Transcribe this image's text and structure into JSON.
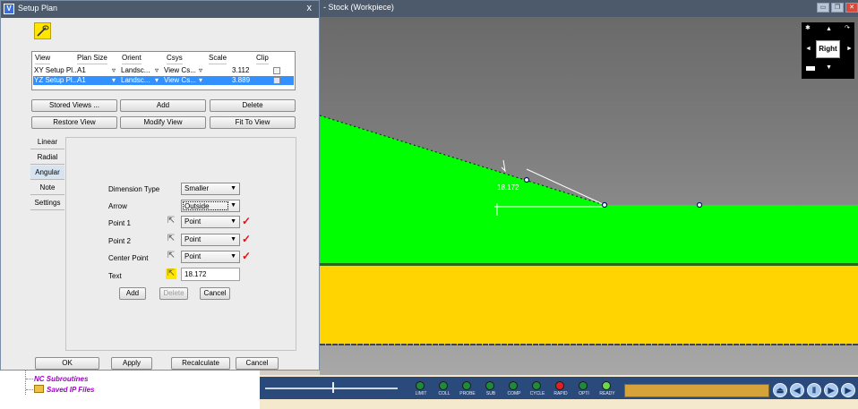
{
  "dialog": {
    "title": "Setup Plan",
    "close_glyph": "x",
    "wand_icon": "magic-wand-icon",
    "table": {
      "headers": [
        "View",
        "Plan Size",
        "Orient",
        "Csys",
        "Scale",
        "Clip"
      ],
      "rows": [
        {
          "view": "XY Setup Pl...",
          "plan_size": "A1",
          "orient": "Landsc...",
          "csys": "View Cs...",
          "scale": "3.112",
          "selected": false
        },
        {
          "view": "YZ Setup Pl...",
          "plan_size": "A1",
          "orient": "Landsc...",
          "csys": "View Cs...",
          "scale": "3.889",
          "selected": true
        }
      ]
    },
    "buttons": {
      "stored_views": "Stored Views ...",
      "add": "Add",
      "delete": "Delete",
      "restore_view": "Restore View",
      "modify_view": "Modify View",
      "fit_to_view": "Fit To View"
    },
    "tabs": [
      "Linear",
      "Radial",
      "Angular",
      "Note",
      "Settings"
    ],
    "active_tab": "Angular",
    "form": {
      "dimension_type_label": "Dimension Type",
      "dimension_type_value": "Smaller",
      "arrow_label": "Arrow",
      "arrow_value": "Outside",
      "point1_label": "Point 1",
      "point1_value": "Point",
      "point2_label": "Point 2",
      "point2_value": "Point",
      "center_point_label": "Center Point",
      "center_point_value": "Point",
      "text_label": "Text",
      "text_value": "18.172",
      "add": "Add",
      "delete": "Delete",
      "cancel": "Cancel"
    },
    "footer": {
      "ok": "OK",
      "apply": "Apply",
      "recalculate": "Recalculate",
      "cancel": "Cancel"
    }
  },
  "viewport": {
    "title": "- Stock (Workpiece)",
    "dimension_label": "18.172",
    "viewcube_face": "Right",
    "colors": {
      "stock_green": "#00ff00",
      "fixture_yellow": "#ffd400",
      "background_top": "#6a6a6a",
      "background_bottom": "#a8a8a8"
    }
  },
  "tree": {
    "items": [
      "NC Subroutines",
      "Saved IP Files"
    ]
  },
  "simulation": {
    "leds": [
      {
        "name": "LIMIT",
        "color": "#1f8a3a"
      },
      {
        "name": "COLL",
        "color": "#1f8a3a"
      },
      {
        "name": "PROBE",
        "color": "#1f8a3a"
      },
      {
        "name": "SUB",
        "color": "#1f8a3a"
      },
      {
        "name": "COMP",
        "color": "#1f8a3a"
      },
      {
        "name": "CYCLE",
        "color": "#1f8a3a"
      },
      {
        "name": "RAPID",
        "color": "#e02020"
      },
      {
        "name": "OPTI",
        "color": "#1f8a3a"
      },
      {
        "name": "READY",
        "color": "#6ad84a"
      }
    ],
    "controls": [
      "eject-icon",
      "rewind-icon",
      "pause-icon",
      "step-forward-icon",
      "play-icon"
    ]
  }
}
